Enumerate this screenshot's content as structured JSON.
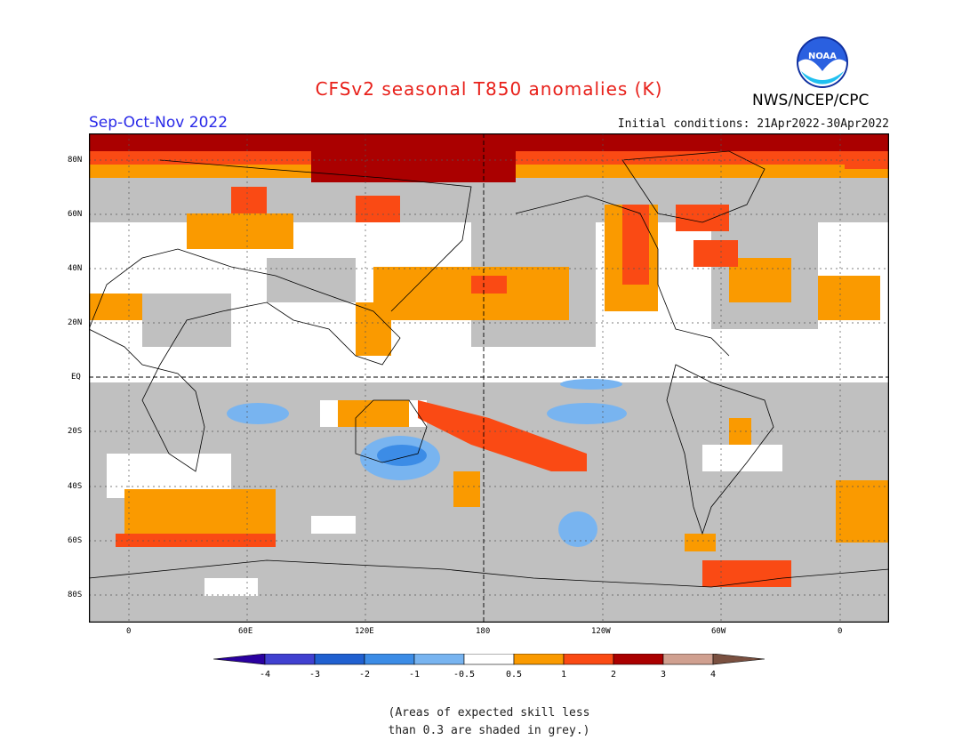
{
  "title": "CFSv2 seasonal T850 anomalies (K)",
  "period": "Sep-Oct-Nov 2022",
  "initial_conditions": "Initial conditions: 21Apr2022-30Apr2022",
  "organization": "NWS/NCEP/CPC",
  "logo_text": "NOAA",
  "lat_labels": [
    "80N",
    "60N",
    "40N",
    "20N",
    "EQ",
    "20S",
    "40S",
    "60S",
    "80S"
  ],
  "lon_labels": [
    "0",
    "60E",
    "120E",
    "180",
    "120W",
    "60W",
    "0"
  ],
  "colorbar": {
    "ticks": [
      "-4",
      "-3",
      "-2",
      "-1",
      "-0.5",
      "0.5",
      "1",
      "2",
      "3",
      "4"
    ],
    "colors": [
      "#2a00a0",
      "#4040d0",
      "#2060d0",
      "#3c8ce6",
      "#78b4f0",
      "#ffffff",
      "#fa9a00",
      "#fa4a14",
      "#aa0000",
      "#d0a090",
      "#7a5040"
    ]
  },
  "note": [
    "(Areas of expected skill less",
    "than 0.3 are shaded in grey.)"
  ]
}
